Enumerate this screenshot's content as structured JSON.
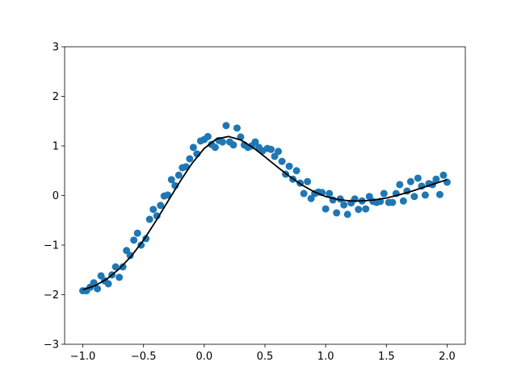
{
  "chart_data": {
    "type": "scatter",
    "xlim": [
      -1.15,
      2.15
    ],
    "ylim": [
      -3,
      3
    ],
    "xticks": [
      {
        "value": -1,
        "label": "−1.0"
      },
      {
        "value": -0.5,
        "label": "−0.5"
      },
      {
        "value": 0,
        "label": "0.0"
      },
      0.5,
      {
        "value": 1,
        "label": "1.0"
      },
      1.5,
      {
        "value": 2,
        "label": "2.0"
      }
    ],
    "yticks": [
      {
        "value": -3,
        "label": "−3"
      },
      {
        "value": -2,
        "label": "−2"
      },
      {
        "value": -1,
        "label": "−1"
      },
      0,
      1,
      2,
      3
    ],
    "series": [
      {
        "type": "scatter",
        "color": "#1f77b4",
        "x": [
          -1.0,
          -0.97,
          -0.94,
          -0.91,
          -0.88,
          -0.85,
          -0.82,
          -0.79,
          -0.76,
          -0.73,
          -0.7,
          -0.67,
          -0.64,
          -0.61,
          -0.58,
          -0.55,
          -0.52,
          -0.48,
          -0.45,
          -0.42,
          -0.39,
          -0.36,
          -0.33,
          -0.3,
          -0.27,
          -0.24,
          -0.21,
          -0.18,
          -0.15,
          -0.12,
          -0.09,
          -0.06,
          -0.03,
          0.0,
          0.03,
          0.06,
          0.09,
          0.12,
          0.15,
          0.18,
          0.21,
          0.24,
          0.27,
          0.3,
          0.33,
          0.36,
          0.39,
          0.42,
          0.45,
          0.48,
          0.52,
          0.55,
          0.58,
          0.61,
          0.64,
          0.67,
          0.7,
          0.73,
          0.76,
          0.79,
          0.82,
          0.85,
          0.88,
          0.91,
          0.94,
          0.97,
          1.0,
          1.03,
          1.06,
          1.09,
          1.12,
          1.15,
          1.18,
          1.21,
          1.24,
          1.27,
          1.3,
          1.33,
          1.36,
          1.39,
          1.42,
          1.45,
          1.48,
          1.52,
          1.55,
          1.58,
          1.61,
          1.64,
          1.67,
          1.7,
          1.73,
          1.76,
          1.79,
          1.82,
          1.85,
          1.88,
          1.91,
          1.94,
          1.97,
          2.0
        ],
        "values": [
          -1.92,
          -1.92,
          -1.85,
          -1.76,
          -1.88,
          -1.62,
          -1.72,
          -1.78,
          -1.6,
          -1.44,
          -1.65,
          -1.44,
          -1.11,
          -1.21,
          -0.9,
          -0.76,
          -1.0,
          -0.87,
          -0.48,
          -0.28,
          -0.41,
          -0.2,
          -0.01,
          0.01,
          0.32,
          0.2,
          0.41,
          0.56,
          0.58,
          0.74,
          0.97,
          0.84,
          1.1,
          1.13,
          1.19,
          1.03,
          0.97,
          1.11,
          1.08,
          1.41,
          1.08,
          1.02,
          1.36,
          1.18,
          1.02,
          0.97,
          1.0,
          1.08,
          0.97,
          0.9,
          0.95,
          0.93,
          0.79,
          0.89,
          0.69,
          0.43,
          0.59,
          0.33,
          0.5,
          0.25,
          0.04,
          0.28,
          -0.06,
          0.04,
          0.07,
          0.06,
          -0.27,
          0.04,
          -0.09,
          -0.35,
          -0.07,
          -0.19,
          -0.38,
          -0.15,
          -0.07,
          -0.28,
          -0.11,
          -0.27,
          -0.02,
          -0.12,
          -0.14,
          -0.12,
          0.04,
          -0.14,
          -0.14,
          0.04,
          0.22,
          -0.11,
          0.09,
          0.28,
          -0.02,
          0.35,
          0.19,
          0.01,
          0.24,
          0.22,
          0.33,
          0.02,
          0.41,
          0.27
        ]
      },
      {
        "type": "line",
        "color": "#000000",
        "x": [
          -1.0,
          -0.9,
          -0.8,
          -0.7,
          -0.6,
          -0.5,
          -0.4,
          -0.3,
          -0.2,
          -0.1,
          0.0,
          0.1,
          0.2,
          0.3,
          0.4,
          0.5,
          0.6,
          0.7,
          0.8,
          0.9,
          1.0,
          1.1,
          1.2,
          1.3,
          1.4,
          1.5,
          1.6,
          1.7,
          1.8,
          1.9,
          2.0
        ],
        "values": [
          -1.9,
          -1.82,
          -1.68,
          -1.48,
          -1.22,
          -0.9,
          -0.52,
          -0.12,
          0.28,
          0.65,
          0.95,
          1.14,
          1.19,
          1.12,
          0.97,
          0.78,
          0.58,
          0.39,
          0.22,
          0.08,
          -0.02,
          -0.08,
          -0.11,
          -0.11,
          -0.09,
          -0.05,
          0.01,
          0.08,
          0.16,
          0.24,
          0.32
        ]
      }
    ]
  }
}
